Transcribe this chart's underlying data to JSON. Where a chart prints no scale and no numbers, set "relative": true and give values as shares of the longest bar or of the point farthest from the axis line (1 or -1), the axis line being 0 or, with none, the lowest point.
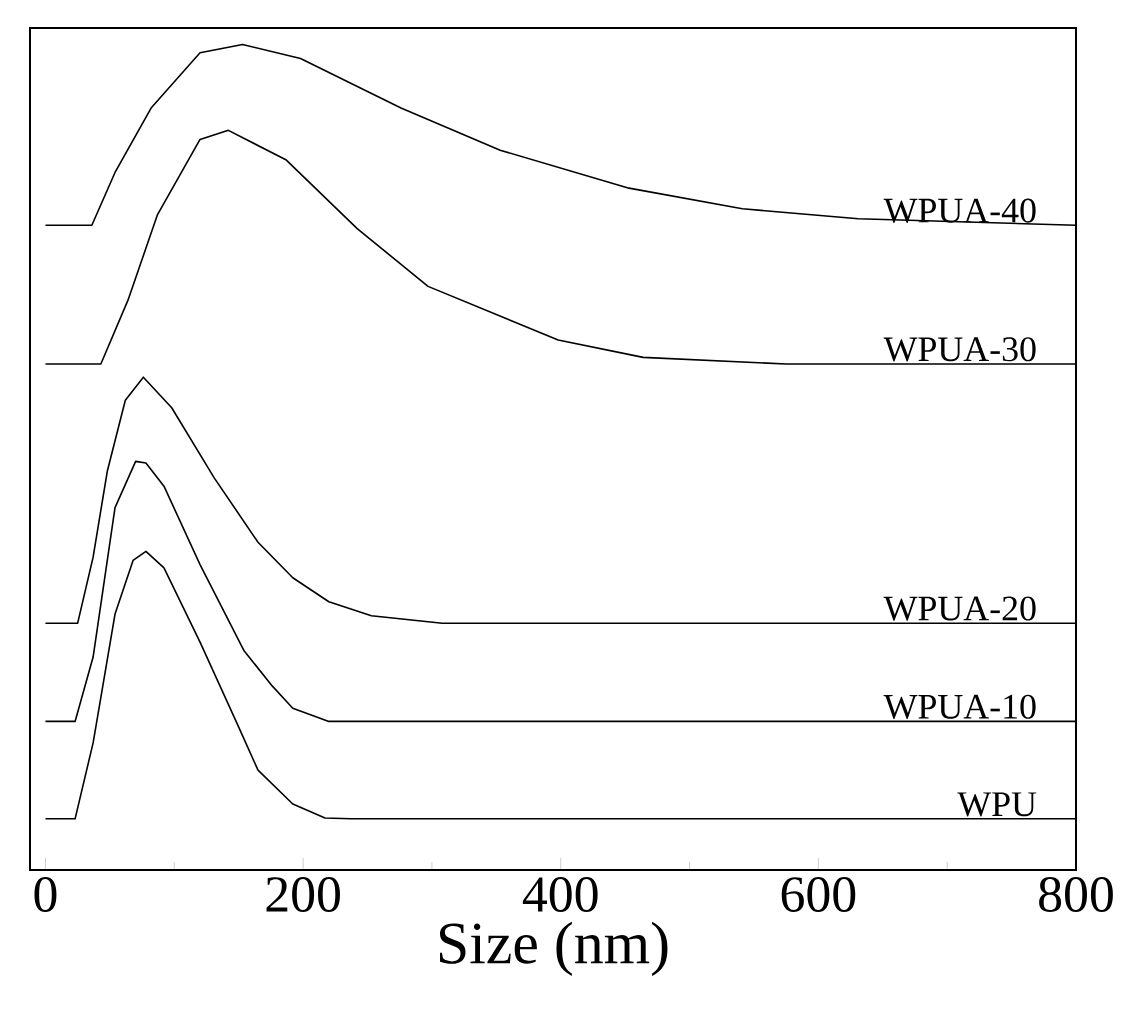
{
  "chart_data": {
    "type": "line",
    "xlabel": "Size (nm)",
    "relative": true,
    "legend": false,
    "grid": false,
    "marker": "none",
    "line_style": "solid",
    "xlim": [
      -12,
      800
    ],
    "xticks": [
      0,
      200,
      400,
      600,
      800
    ],
    "tick_labels": "x",
    "series": [
      {
        "name": "WPUA-40",
        "color": "#000000",
        "x": [
          0,
          36,
          54,
          82,
          120,
          153,
          198,
          276,
          353,
          453,
          541,
          631,
          800
        ],
        "values": [
          0.781,
          0.781,
          0.845,
          0.923,
          0.99,
          1.0,
          0.983,
          0.923,
          0.872,
          0.826,
          0.801,
          0.789,
          0.781
        ]
      },
      {
        "name": "WPUA-30",
        "color": "#000000",
        "x": [
          0,
          43,
          64,
          87,
          120,
          142,
          187,
          242,
          297,
          398,
          464,
          575,
          800
        ],
        "values": [
          0.613,
          0.613,
          0.69,
          0.794,
          0.885,
          0.896,
          0.86,
          0.777,
          0.707,
          0.642,
          0.621,
          0.613,
          0.613
        ]
      },
      {
        "name": "WPUA-20",
        "color": "#000000",
        "x": [
          0,
          25,
          37,
          48,
          62,
          76,
          98,
          131,
          165,
          192,
          220,
          253,
          308,
          800
        ],
        "values": [
          0.299,
          0.299,
          0.379,
          0.483,
          0.569,
          0.597,
          0.56,
          0.475,
          0.397,
          0.354,
          0.325,
          0.308,
          0.299,
          0.299
        ]
      },
      {
        "name": "WPUA-10",
        "color": "#000000",
        "x": [
          0,
          23,
          37,
          54,
          70,
          78,
          92,
          120,
          154,
          176,
          192,
          220,
          800
        ],
        "values": [
          0.18,
          0.18,
          0.258,
          0.439,
          0.495,
          0.493,
          0.465,
          0.37,
          0.266,
          0.223,
          0.196,
          0.18,
          0.18
        ]
      },
      {
        "name": "WPU",
        "color": "#000000",
        "x": [
          0,
          23,
          37,
          54,
          68,
          78,
          92,
          120,
          148,
          165,
          192,
          217,
          237,
          800
        ],
        "values": [
          0.062,
          0.062,
          0.154,
          0.31,
          0.375,
          0.386,
          0.366,
          0.276,
          0.18,
          0.121,
          0.08,
          0.063,
          0.062,
          0.062
        ]
      }
    ]
  }
}
